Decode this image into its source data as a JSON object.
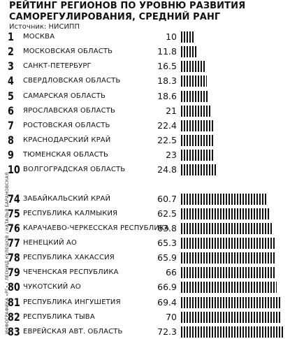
{
  "title_line1": "РЕЙТИНГ РЕГИОНОВ ПО УРОВНЮ РАЗВИТИЯ",
  "title_line2": "САМОРЕГУЛИРОВАНИЯ, СРЕДНИЙ РАНГ",
  "source": "Источник: НИСИПП",
  "credit": "ИНФОГРАФИКА «РГ» / ЛЕОНИД КУЛЕШОВ / НАТАЛЬЯ БАРАНОВСКАЯ",
  "colors": {
    "bar": "#111111",
    "text": "#111111"
  },
  "chart_data": {
    "type": "bar",
    "orientation": "horizontal",
    "title": "РЕЙТИНГ РЕГИОНОВ ПО УРОВНЮ РАЗВИТИЯ САМОРЕГУЛИРОВАНИЯ, СРЕДНИЙ РАНГ",
    "source": "Источник: НИСИПП",
    "xlim": [
      0,
      72.3
    ],
    "rows": [
      {
        "rank": "1",
        "region": "МОСКВА",
        "value": 10,
        "label": "10"
      },
      {
        "rank": "2",
        "region": "МОСКОВСКАЯ ОБЛАСТЬ",
        "value": 11.8,
        "label": "11.8"
      },
      {
        "rank": "3",
        "region": "САНКТ-ПЕТЕРБУРГ",
        "value": 16.5,
        "label": "16.5"
      },
      {
        "rank": "4",
        "region": "СВЕРДЛОВСКАЯ ОБЛАСТЬ",
        "value": 18.3,
        "label": "18.3"
      },
      {
        "rank": "5",
        "region": "САМАРСКАЯ ОБЛАСТЬ",
        "value": 18.6,
        "label": "18.6"
      },
      {
        "rank": "6",
        "region": "ЯРОСЛАВСКАЯ ОБЛАСТЬ",
        "value": 21,
        "label": "21"
      },
      {
        "rank": "7",
        "region": "РОСТОВСКАЯ ОБЛАСТЬ",
        "value": 22.4,
        "label": "22.4"
      },
      {
        "rank": "8",
        "region": "КРАСНОДАРСКИЙ КРАЙ",
        "value": 22.5,
        "label": "22.5"
      },
      {
        "rank": "9",
        "region": "ТЮМЕНСКАЯ ОБЛАСТЬ",
        "value": 23,
        "label": "23"
      },
      {
        "rank": "10",
        "region": "ВОЛГОГРАДСКАЯ ОБЛАСТЬ",
        "value": 24.8,
        "label": "24.8"
      },
      {
        "rank": "74",
        "region": "ЗАБАЙКАЛЬСКИЙ КРАЙ",
        "value": 60.7,
        "label": "60.7"
      },
      {
        "rank": "75",
        "region": "РЕСПУБЛИКА КАЛМЫКИЯ",
        "value": 62.5,
        "label": "62.5"
      },
      {
        "rank": "76",
        "region": "КАРАЧАЕВО-ЧЕРКЕССКАЯ РЕСПУБЛИКА",
        "value": 63.8,
        "label": "63.8"
      },
      {
        "rank": "77",
        "region": "НЕНЕЦКИЙ АО",
        "value": 65.3,
        "label": "65.3"
      },
      {
        "rank": "78",
        "region": "РЕСПУБЛИКА ХАКАССИЯ",
        "value": 65.9,
        "label": "65.9"
      },
      {
        "rank": "79",
        "region": "ЧЕЧЕНСКАЯ РЕСПУБЛИКА",
        "value": 66,
        "label": "66"
      },
      {
        "rank": "80",
        "region": "ЧУКОТСКИЙ АО",
        "value": 66.9,
        "label": "66.9"
      },
      {
        "rank": "81",
        "region": "РЕСПУБЛИКА ИНГУШЕТИЯ",
        "value": 69.4,
        "label": "69.4"
      },
      {
        "rank": "82",
        "region": "РЕСПУБЛИКА ТЫВА",
        "value": 70,
        "label": "70"
      },
      {
        "rank": "83",
        "region": "ЕВРЕЙСКАЯ АВТ. ОБЛАСТЬ",
        "value": 72.3,
        "label": "72.3"
      }
    ]
  }
}
